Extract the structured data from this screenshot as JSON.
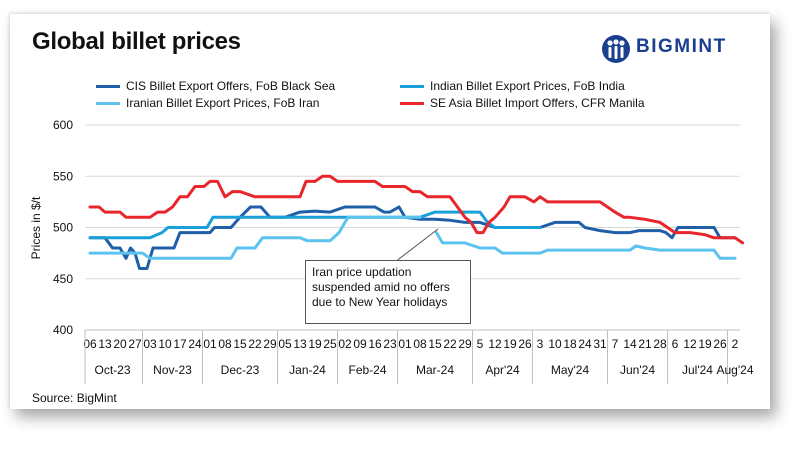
{
  "title": "Global billet prices",
  "brand": {
    "name": "BIGMINT"
  },
  "source": "Source: BigMint",
  "annotation": "Iran price updation suspended amid no offers due to New Year holidays",
  "chart_data": {
    "type": "line",
    "title": "Global billet prices",
    "ylabel": "Prices in $/t",
    "xlabel": "",
    "ylim": [
      400,
      600
    ],
    "yticks": [
      400,
      450,
      500,
      550,
      600
    ],
    "grid": true,
    "legend_position": "top",
    "x": [
      "06",
      "13",
      "20",
      "27",
      "03",
      "10",
      "17",
      "24",
      "01",
      "08",
      "15",
      "22",
      "29",
      "05",
      "13",
      "19",
      "25",
      "02",
      "09",
      "16",
      "23",
      "01",
      "08",
      "15",
      "22",
      "29",
      "5",
      "12",
      "19",
      "26",
      "3",
      "10",
      "18",
      "24",
      "31",
      "7",
      "14",
      "21",
      "28",
      "6",
      "12",
      "19",
      "26",
      "2"
    ],
    "months": [
      {
        "label": "Oct-23",
        "start": 0,
        "end": 3
      },
      {
        "label": "Nov-23",
        "start": 4,
        "end": 7
      },
      {
        "label": "Dec-23",
        "start": 8,
        "end": 12
      },
      {
        "label": "Jan-24",
        "start": 13,
        "end": 16
      },
      {
        "label": "Feb-24",
        "start": 17,
        "end": 20
      },
      {
        "label": "Mar-24",
        "start": 21,
        "end": 25
      },
      {
        "label": "Apr'24",
        "start": 26,
        "end": 29
      },
      {
        "label": "May'24",
        "start": 30,
        "end": 34
      },
      {
        "label": "Jun'24",
        "start": 35,
        "end": 38
      },
      {
        "label": "Jul'24",
        "start": 39,
        "end": 42
      },
      {
        "label": "Aug'24",
        "start": 43,
        "end": 43
      }
    ],
    "series": [
      {
        "name": "CIS Billet Export Offers, FoB Black Sea",
        "color": "#1f5fa8",
        "points": [
          [
            0,
            490
          ],
          [
            0.6,
            490
          ],
          [
            1,
            490
          ],
          [
            1.5,
            480
          ],
          [
            2,
            480
          ],
          [
            2.4,
            470
          ],
          [
            2.7,
            480
          ],
          [
            3,
            475
          ],
          [
            3.3,
            460
          ],
          [
            3.8,
            460
          ],
          [
            4.2,
            480
          ],
          [
            5,
            480
          ],
          [
            5.6,
            480
          ],
          [
            6,
            495
          ],
          [
            7,
            495
          ],
          [
            8,
            495
          ],
          [
            8.3,
            500
          ],
          [
            9.4,
            500
          ],
          [
            10,
            510
          ],
          [
            10.7,
            520
          ],
          [
            11.4,
            520
          ],
          [
            12,
            510
          ],
          [
            13,
            510
          ],
          [
            14,
            515
          ],
          [
            15,
            516
          ],
          [
            16,
            515
          ],
          [
            17,
            520
          ],
          [
            18,
            520
          ],
          [
            19,
            520
          ],
          [
            19.6,
            515
          ],
          [
            20,
            515
          ],
          [
            20.6,
            520
          ],
          [
            21,
            510
          ],
          [
            22,
            508
          ],
          [
            23,
            508
          ],
          [
            24,
            507
          ],
          [
            25,
            505
          ],
          [
            26,
            505
          ],
          [
            27,
            500
          ],
          [
            28,
            500
          ],
          [
            29,
            500
          ],
          [
            30,
            500
          ],
          [
            31,
            505
          ],
          [
            32,
            505
          ],
          [
            32.6,
            505
          ],
          [
            33,
            500
          ],
          [
            34,
            497
          ],
          [
            35,
            495
          ],
          [
            36,
            495
          ],
          [
            36.6,
            497
          ],
          [
            37,
            497
          ],
          [
            38,
            497
          ],
          [
            38.4,
            495
          ],
          [
            38.8,
            490
          ],
          [
            39.2,
            500
          ],
          [
            40,
            500
          ],
          [
            41,
            500
          ],
          [
            41.6,
            500
          ],
          [
            42,
            490
          ],
          [
            43,
            490
          ]
        ]
      },
      {
        "name": "Indian Billet Export Prices, FoB India",
        "color": "#1aa0d8",
        "points": [
          [
            0,
            490
          ],
          [
            1,
            490
          ],
          [
            2,
            490
          ],
          [
            3,
            490
          ],
          [
            4,
            490
          ],
          [
            4.8,
            495
          ],
          [
            5.2,
            500
          ],
          [
            6,
            500
          ],
          [
            7,
            500
          ],
          [
            7.8,
            500
          ],
          [
            8.2,
            510
          ],
          [
            9,
            510
          ],
          [
            10,
            510
          ],
          [
            11,
            510
          ],
          [
            12,
            510
          ],
          [
            13,
            510
          ],
          [
            14,
            510
          ],
          [
            15,
            510
          ],
          [
            16,
            510
          ],
          [
            17,
            510
          ],
          [
            18,
            510
          ],
          [
            19,
            510
          ],
          [
            20,
            510
          ],
          [
            21,
            510
          ],
          [
            22,
            510
          ],
          [
            23,
            515
          ],
          [
            24,
            515
          ],
          [
            25,
            515
          ],
          [
            26,
            515
          ],
          [
            26.5,
            505
          ],
          [
            27,
            500
          ],
          [
            28,
            500
          ],
          [
            29,
            500
          ],
          [
            30,
            500
          ]
        ]
      },
      {
        "name": "Iranian Billet Export Prices, FoB Iran",
        "color": "#5cc3ef",
        "points": [
          [
            0,
            475
          ],
          [
            1,
            475
          ],
          [
            2,
            475
          ],
          [
            3,
            475
          ],
          [
            3.5,
            475
          ],
          [
            4,
            470
          ],
          [
            5,
            470
          ],
          [
            6,
            470
          ],
          [
            7,
            470
          ],
          [
            8,
            470
          ],
          [
            9,
            470
          ],
          [
            9.4,
            470
          ],
          [
            9.8,
            480
          ],
          [
            10.5,
            480
          ],
          [
            11,
            480
          ],
          [
            11.5,
            490
          ],
          [
            12,
            490
          ],
          [
            13,
            490
          ],
          [
            14,
            490
          ],
          [
            14.5,
            487
          ],
          [
            15,
            487
          ],
          [
            16,
            487
          ],
          [
            16.6,
            495
          ],
          [
            17.2,
            510
          ],
          [
            18,
            510
          ],
          [
            19,
            510
          ],
          [
            20,
            510
          ],
          [
            21,
            510
          ],
          [
            22,
            510
          ],
          [
            null,
            null
          ],
          [
            23.1,
            495
          ],
          [
            23.5,
            485
          ],
          [
            24,
            485
          ],
          [
            25,
            485
          ],
          [
            26,
            480
          ],
          [
            27,
            480
          ],
          [
            27.5,
            475
          ],
          [
            28,
            475
          ],
          [
            29,
            475
          ],
          [
            30,
            475
          ],
          [
            30.5,
            478
          ],
          [
            31,
            478
          ],
          [
            32,
            478
          ],
          [
            33,
            478
          ],
          [
            34,
            478
          ],
          [
            35,
            478
          ],
          [
            36,
            478
          ],
          [
            36.4,
            482
          ],
          [
            37,
            480
          ],
          [
            38,
            478
          ],
          [
            39,
            478
          ],
          [
            40,
            478
          ],
          [
            41,
            478
          ],
          [
            41.6,
            478
          ],
          [
            42,
            470
          ],
          [
            43,
            470
          ]
        ]
      },
      {
        "name": "SE Asia Billet Import Offers, CFR Manila",
        "color": "#e8262b",
        "points": [
          [
            0,
            520
          ],
          [
            0.6,
            520
          ],
          [
            1,
            515
          ],
          [
            2,
            515
          ],
          [
            2.4,
            510
          ],
          [
            3,
            510
          ],
          [
            4,
            510
          ],
          [
            4.5,
            515
          ],
          [
            5,
            515
          ],
          [
            5.5,
            520
          ],
          [
            6,
            530
          ],
          [
            6.5,
            530
          ],
          [
            7,
            540
          ],
          [
            7.6,
            540
          ],
          [
            8,
            545
          ],
          [
            8.5,
            545
          ],
          [
            9,
            530
          ],
          [
            9.5,
            535
          ],
          [
            10,
            535
          ],
          [
            11,
            530
          ],
          [
            12,
            530
          ],
          [
            13,
            530
          ],
          [
            14,
            530
          ],
          [
            14.4,
            545
          ],
          [
            15,
            545
          ],
          [
            15.5,
            550
          ],
          [
            16,
            550
          ],
          [
            16.5,
            545
          ],
          [
            17,
            545
          ],
          [
            18,
            545
          ],
          [
            19,
            545
          ],
          [
            19.5,
            540
          ],
          [
            20,
            540
          ],
          [
            21,
            540
          ],
          [
            21.5,
            535
          ],
          [
            22,
            535
          ],
          [
            22.5,
            530
          ],
          [
            23,
            530
          ],
          [
            24,
            530
          ],
          [
            24.5,
            520
          ],
          [
            25,
            510
          ],
          [
            25.4,
            505
          ],
          [
            25.8,
            495
          ],
          [
            26.2,
            495
          ],
          [
            26.6,
            505
          ],
          [
            27,
            510
          ],
          [
            27.6,
            520
          ],
          [
            28,
            530
          ],
          [
            29,
            530
          ],
          [
            29.6,
            525
          ],
          [
            30,
            530
          ],
          [
            30.5,
            525
          ],
          [
            31,
            525
          ],
          [
            32,
            525
          ],
          [
            33,
            525
          ],
          [
            34,
            525
          ],
          [
            34.5,
            520
          ],
          [
            35,
            515
          ],
          [
            35.6,
            510
          ],
          [
            36,
            510
          ],
          [
            37,
            508
          ],
          [
            38,
            505
          ],
          [
            38.5,
            500
          ],
          [
            39,
            495
          ],
          [
            40,
            495
          ],
          [
            41,
            493
          ],
          [
            41.6,
            490
          ],
          [
            42,
            490
          ],
          [
            43,
            490
          ],
          [
            43.5,
            485
          ]
        ]
      }
    ]
  }
}
